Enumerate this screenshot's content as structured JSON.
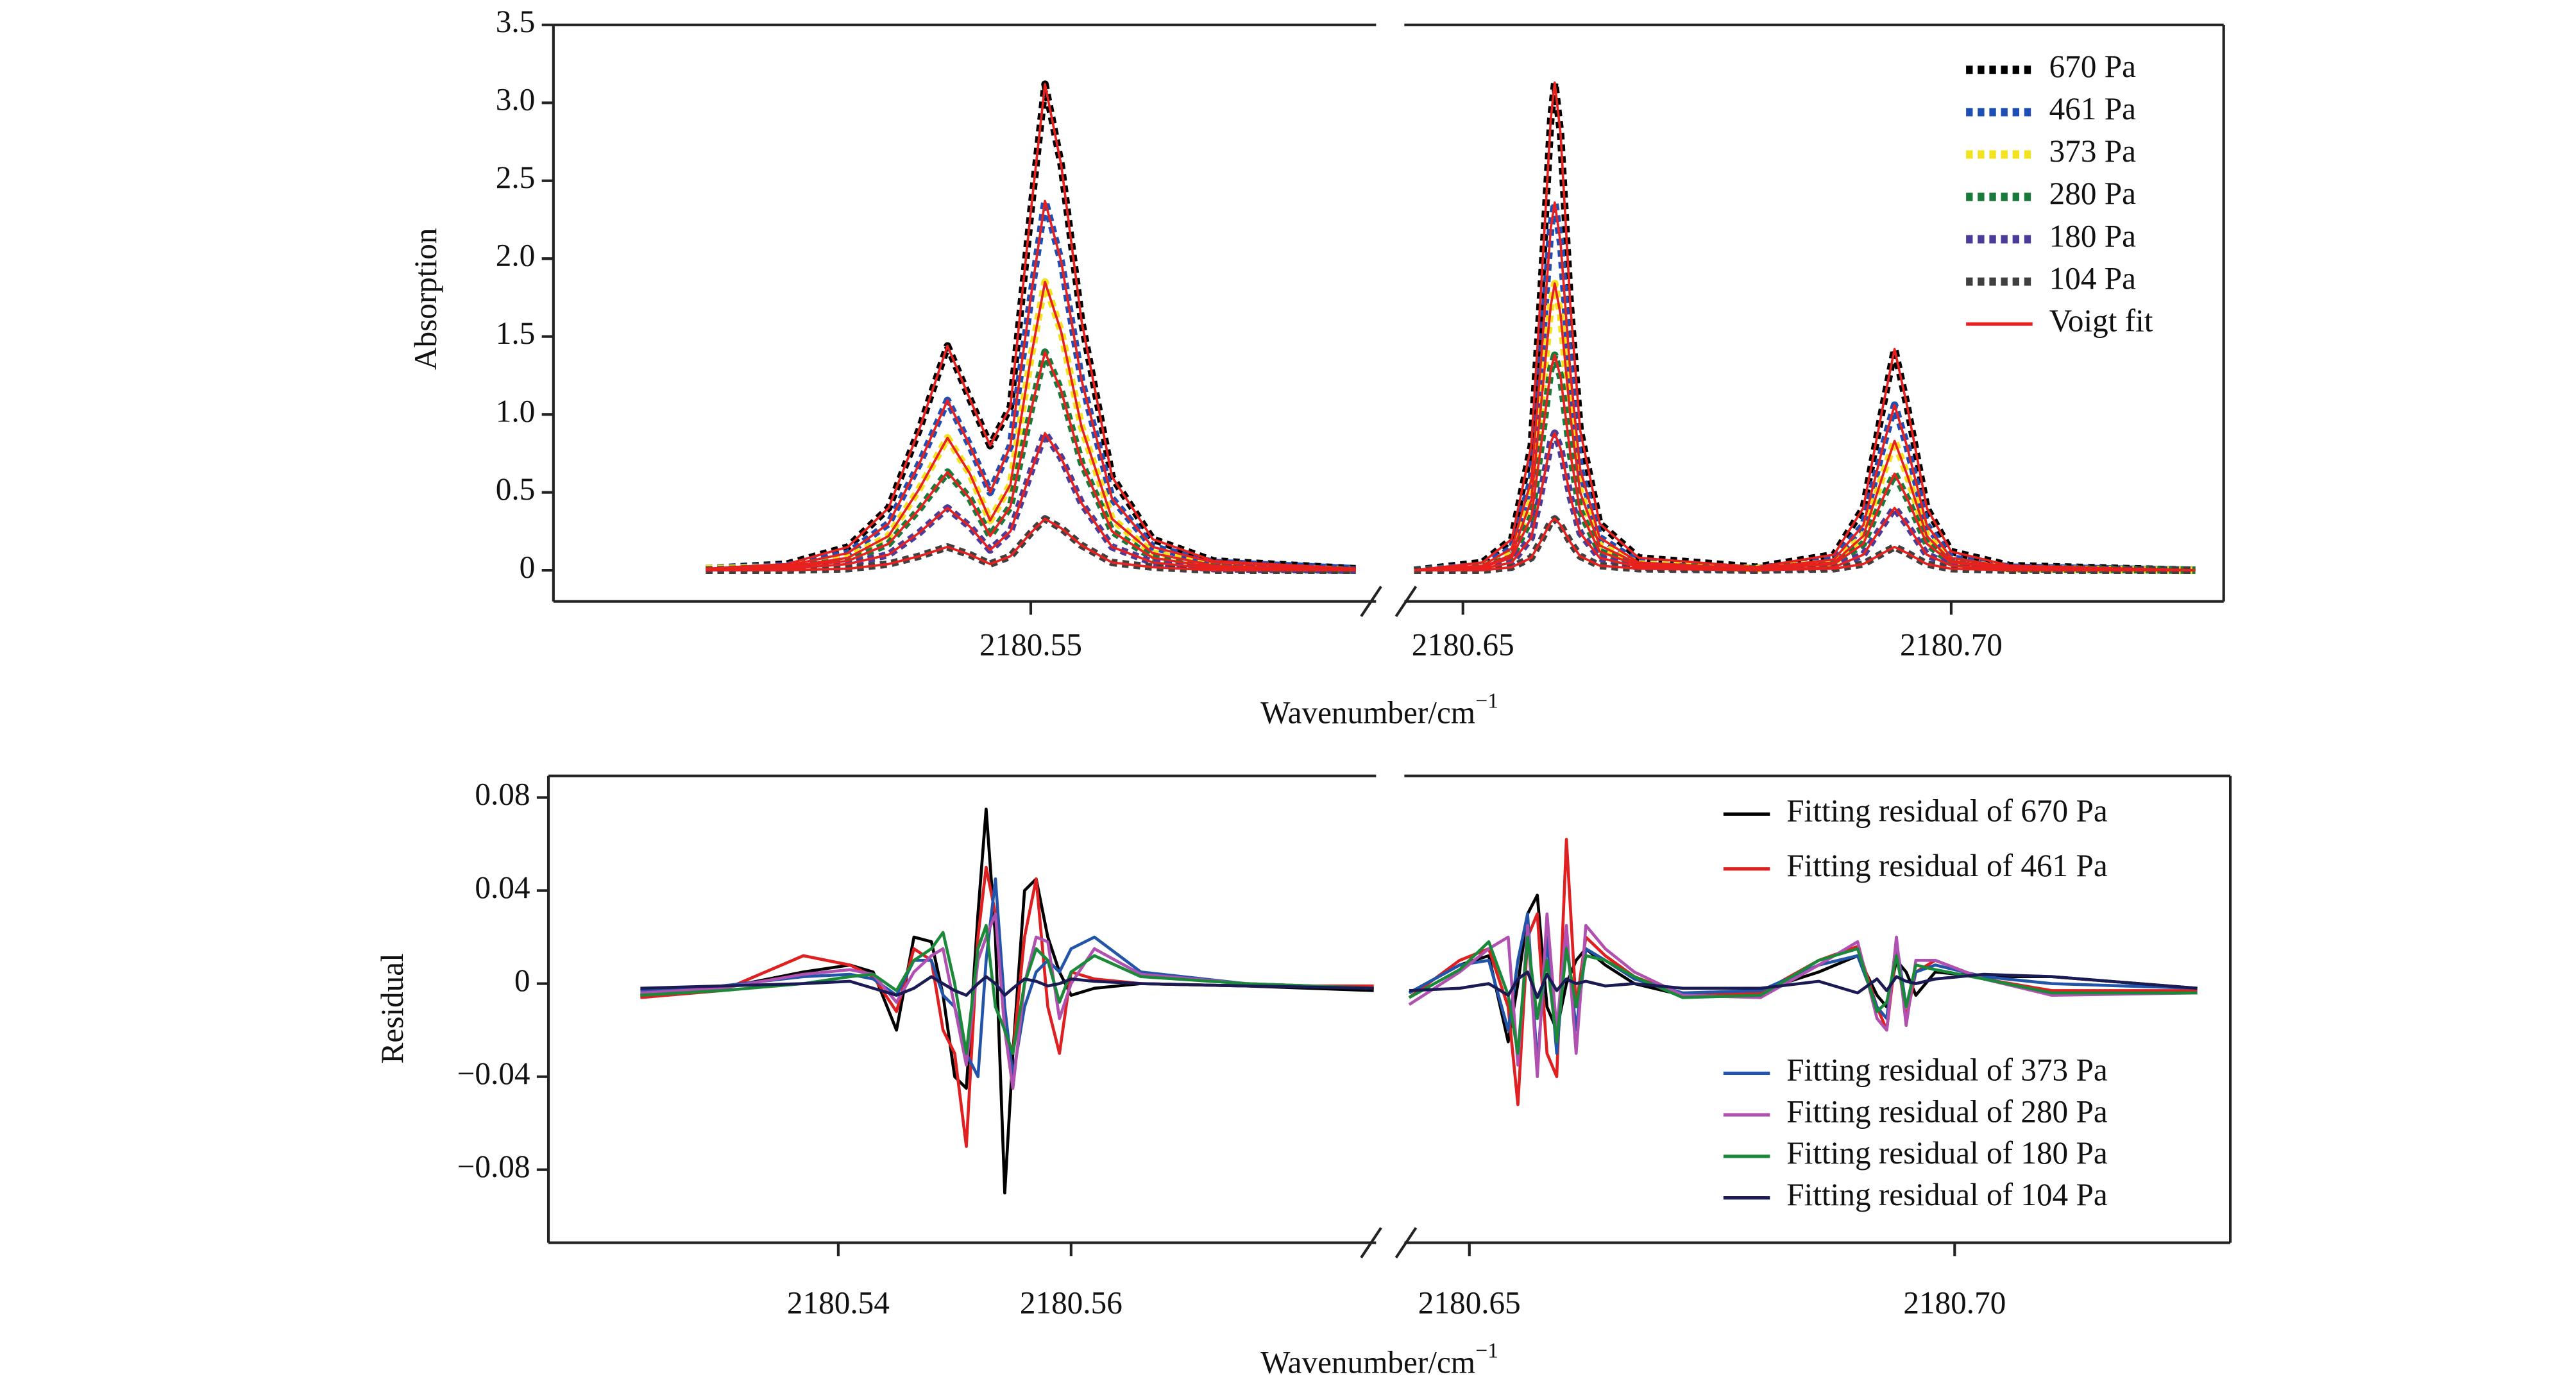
{
  "chart_data": [
    {
      "type": "line",
      "ylabel": "Absorption",
      "xlabel": {
        "text": "Wavenumber/cm",
        "superscript": "−1"
      },
      "segments": [
        {
          "xlim": [
            2180.5265,
            2180.567
          ],
          "xticks": [
            2180.55
          ]
        },
        {
          "xlim": [
            2180.644,
            2180.7279
          ],
          "xticks": [
            2180.65,
            {
              "value": 2180.7,
              "label": "2180.70"
            }
          ]
        }
      ],
      "ylim": [
        -0.2,
        3.5
      ],
      "yticks": [
        0,
        0.5,
        {
          "value": 1,
          "label": "1.0"
        },
        1.5,
        {
          "value": 2,
          "label": "2.0"
        },
        2.5,
        {
          "value": 3,
          "label": "3.0"
        },
        3.5
      ],
      "legend": "upper right",
      "x": [
        2180.534,
        2180.538,
        2180.541,
        2180.543,
        2180.5445,
        2180.5459,
        2180.547,
        2180.548,
        2180.549,
        2180.55,
        2180.5507,
        2180.5515,
        2180.5525,
        2180.554,
        2180.556,
        2180.559,
        2180.566,
        2180.645,
        2180.652,
        2180.655,
        2180.657,
        2180.658,
        2180.659,
        2180.6594,
        2180.66,
        2180.661,
        2180.662,
        2180.664,
        2180.668,
        2180.68,
        2180.688,
        2180.691,
        2180.693,
        2180.6942,
        2180.6955,
        2180.6975,
        2180.7,
        2180.706,
        2180.725
      ],
      "series": [
        {
          "name": "670 Pa",
          "color": "#000000",
          "style": "dotted",
          "values": [
            0.01,
            0.04,
            0.15,
            0.4,
            0.9,
            1.44,
            1.1,
            0.8,
            1.05,
            2.3,
            3.12,
            2.6,
            1.6,
            0.6,
            0.2,
            0.06,
            0.01,
            0,
            0.05,
            0.2,
            0.8,
            1.8,
            2.9,
            3.13,
            2.8,
            1.7,
            0.9,
            0.3,
            0.08,
            0.02,
            0.1,
            0.4,
            1.05,
            1.42,
            1.05,
            0.4,
            0.12,
            0.03,
            0
          ]
        },
        {
          "name": "461 Pa",
          "color": "#1f4fb4",
          "style": "dotted",
          "values": [
            0.01,
            0.03,
            0.11,
            0.3,
            0.68,
            1.09,
            0.8,
            0.5,
            0.8,
            1.75,
            2.37,
            1.98,
            1.22,
            0.46,
            0.15,
            0.05,
            0.01,
            0,
            0.03,
            0.14,
            0.58,
            1.35,
            2.2,
            2.36,
            2.1,
            1.27,
            0.65,
            0.21,
            0.05,
            0.01,
            0.07,
            0.29,
            0.79,
            1.06,
            0.79,
            0.29,
            0.08,
            0.02,
            0
          ]
        },
        {
          "name": "373 Pa",
          "color": "#f2e31e",
          "style": "dotted",
          "values": [
            0.01,
            0.02,
            0.08,
            0.22,
            0.52,
            0.85,
            0.62,
            0.32,
            0.55,
            1.36,
            1.85,
            1.53,
            0.92,
            0.33,
            0.11,
            0.03,
            0,
            0,
            0.02,
            0.1,
            0.45,
            1.06,
            1.7,
            1.84,
            1.64,
            0.99,
            0.5,
            0.16,
            0.04,
            0.01,
            0.05,
            0.22,
            0.61,
            0.83,
            0.61,
            0.22,
            0.06,
            0.01,
            0
          ]
        },
        {
          "name": "280 Pa",
          "color": "#1a7a3a",
          "style": "dotted",
          "values": [
            0,
            0.02,
            0.06,
            0.17,
            0.39,
            0.63,
            0.46,
            0.22,
            0.41,
            1.02,
            1.4,
            1.15,
            0.69,
            0.25,
            0.08,
            0.02,
            0,
            0,
            0.02,
            0.08,
            0.34,
            0.8,
            1.29,
            1.38,
            1.24,
            0.75,
            0.38,
            0.12,
            0.03,
            0.01,
            0.04,
            0.17,
            0.46,
            0.62,
            0.46,
            0.17,
            0.05,
            0.01,
            0
          ]
        },
        {
          "name": "180 Pa",
          "color": "#4a3d9a",
          "style": "dotted",
          "values": [
            0,
            0.01,
            0.04,
            0.1,
            0.24,
            0.4,
            0.28,
            0.13,
            0.25,
            0.63,
            0.88,
            0.72,
            0.43,
            0.15,
            0.05,
            0.01,
            0,
            0,
            0.01,
            0.05,
            0.21,
            0.5,
            0.82,
            0.88,
            0.78,
            0.47,
            0.24,
            0.08,
            0.02,
            0,
            0.02,
            0.1,
            0.29,
            0.4,
            0.29,
            0.1,
            0.03,
            0,
            0
          ]
        },
        {
          "name": "104 Pa",
          "color": "#404040",
          "style": "dotted",
          "values": [
            0,
            0,
            0.01,
            0.04,
            0.09,
            0.15,
            0.1,
            0.04,
            0.09,
            0.24,
            0.33,
            0.27,
            0.16,
            0.05,
            0.02,
            0,
            0,
            0,
            0,
            0.02,
            0.08,
            0.19,
            0.31,
            0.33,
            0.29,
            0.18,
            0.09,
            0.03,
            0.01,
            0,
            0.01,
            0.04,
            0.11,
            0.15,
            0.11,
            0.04,
            0.01,
            0,
            0
          ]
        }
      ],
      "fit": {
        "name": "Voigt fit",
        "color": "#e8201e"
      }
    },
    {
      "type": "line",
      "ylabel": "Residual",
      "xlabel": {
        "text": "Wavenumber/cm",
        "superscript": "−1"
      },
      "segments": [
        {
          "xlim": [
            2180.5151,
            2180.5862
          ],
          "xticks": [
            2180.54,
            2180.56
          ]
        },
        {
          "xlim": [
            2180.6433,
            2180.7284
          ],
          "xticks": [
            2180.65,
            {
              "value": 2180.7,
              "label": "2180.70"
            }
          ]
        }
      ],
      "ylim": [
        -0.1114,
        0.0893
      ],
      "yticks": [
        0.08,
        0.04,
        0,
        {
          "value": -0.04,
          "label": "−0.04"
        },
        {
          "value": -0.08,
          "label": "−0.08"
        }
      ],
      "x": [
        2180.523,
        2180.53,
        2180.537,
        2180.541,
        2180.543,
        2180.545,
        2180.5465,
        2180.548,
        2180.549,
        2180.55,
        2180.551,
        2180.552,
        2180.5527,
        2180.5535,
        2180.5543,
        2180.555,
        2180.556,
        2180.557,
        2180.558,
        2180.559,
        2180.56,
        2180.562,
        2180.566,
        2180.575,
        2180.586,
        2180.6438,
        2180.649,
        2180.652,
        2180.654,
        2180.655,
        2180.656,
        2180.657,
        2180.658,
        2180.659,
        2180.66,
        2180.661,
        2180.662,
        2180.664,
        2180.667,
        2180.672,
        2180.68,
        2180.686,
        2180.69,
        2180.692,
        2180.693,
        2180.694,
        2180.695,
        2180.696,
        2180.698,
        2180.703,
        2180.71,
        2180.725
      ],
      "series": [
        {
          "name": "Fitting residual of 670 Pa",
          "color": "#000000",
          "legend": "upper right",
          "values": [
            -0.005,
            -0.002,
            0.005,
            0.008,
            0.005,
            -0.02,
            0.02,
            0.018,
            -0.005,
            -0.04,
            -0.045,
            0.03,
            0.075,
            0.02,
            -0.09,
            -0.03,
            0.04,
            0.045,
            0.02,
            0.005,
            -0.005,
            -0.002,
            0,
            -0.001,
            -0.003,
            -0.004,
            0.008,
            0.012,
            -0.025,
            0,
            0.03,
            0.038,
            -0.01,
            -0.02,
            0,
            0.01,
            0.015,
            0.008,
            0,
            -0.005,
            -0.003,
            0.005,
            0.012,
            -0.005,
            -0.01,
            0.01,
            0.005,
            -0.005,
            0.005,
            0.003,
            0.003,
            -0.002
          ]
        },
        {
          "name": "Fitting residual of 461 Pa",
          "color": "#e02020",
          "legend": "upper right",
          "values": [
            -0.006,
            -0.003,
            0.012,
            0.008,
            0.003,
            -0.012,
            0.015,
            0.01,
            -0.02,
            -0.03,
            -0.07,
            0.02,
            0.05,
            0.03,
            -0.02,
            -0.03,
            0.02,
            0.045,
            -0.01,
            -0.03,
            0.005,
            0.002,
            0,
            -0.001,
            -0.001,
            -0.006,
            0.01,
            0.015,
            -0.01,
            -0.052,
            0.02,
            0.03,
            -0.03,
            -0.04,
            0.062,
            -0.01,
            0.02,
            0.012,
            0.003,
            -0.005,
            -0.004,
            0.01,
            0.016,
            -0.01,
            -0.02,
            0.015,
            -0.015,
            0.005,
            0.01,
            0.002,
            -0.003,
            -0.003
          ]
        },
        {
          "name": "Fitting residual of 373 Pa",
          "color": "#2255aa",
          "legend": "lower right",
          "values": [
            -0.003,
            -0.001,
            0.003,
            0.004,
            0.002,
            -0.005,
            0.01,
            0.01,
            -0.005,
            -0.01,
            -0.03,
            -0.04,
            0.01,
            0.045,
            -0.01,
            -0.04,
            -0.01,
            0.005,
            0.01,
            0.005,
            0.015,
            0.02,
            0.005,
            0,
            -0.002,
            -0.004,
            0.008,
            0.01,
            -0.02,
            0.01,
            0.03,
            -0.035,
            0.02,
            -0.03,
            0.02,
            -0.02,
            0.015,
            0.01,
            0.002,
            -0.004,
            -0.003,
            0.008,
            0.012,
            -0.01,
            -0.015,
            0.018,
            -0.01,
            0.005,
            0.008,
            0.003,
            0,
            -0.002
          ]
        },
        {
          "name": "Fitting residual of 280 Pa",
          "color": "#b050b0",
          "legend": "lower right",
          "values": [
            -0.004,
            -0.002,
            0.004,
            0.006,
            0.004,
            -0.008,
            0.005,
            0.012,
            0.015,
            -0.01,
            -0.035,
            0.01,
            0.02,
            0.03,
            -0.02,
            -0.045,
            0,
            0.02,
            0.018,
            -0.015,
            0,
            0.015,
            0.004,
            0,
            -0.002,
            -0.009,
            0.005,
            0.015,
            0.02,
            -0.035,
            0.025,
            -0.04,
            0.03,
            -0.02,
            0.025,
            -0.03,
            0.025,
            0.015,
            0.005,
            -0.005,
            -0.006,
            0.008,
            0.018,
            -0.015,
            -0.02,
            0.02,
            -0.018,
            0.01,
            0.01,
            0.002,
            -0.005,
            -0.004
          ]
        },
        {
          "name": "Fitting residual of 180 Pa",
          "color": "#1a8a3a",
          "legend": "lower right",
          "values": [
            -0.005,
            -0.003,
            0,
            0.003,
            0.004,
            -0.003,
            0.01,
            0.015,
            0.022,
            0,
            -0.03,
            0.015,
            0.025,
            -0.01,
            -0.02,
            -0.03,
            0,
            0.015,
            0.01,
            -0.008,
            0.005,
            0.012,
            0.003,
            0,
            -0.002,
            -0.006,
            0.006,
            0.018,
            -0.005,
            -0.03,
            0.02,
            -0.015,
            0.01,
            -0.025,
            0.015,
            -0.01,
            0.012,
            0.01,
            0.003,
            -0.006,
            -0.005,
            0.01,
            0.015,
            -0.012,
            -0.008,
            0.012,
            -0.01,
            0.008,
            0.006,
            0.002,
            -0.004,
            -0.004
          ]
        },
        {
          "name": "Fitting residual of 104 Pa",
          "color": "#1a1a55",
          "legend": "lower right",
          "values": [
            -0.002,
            -0.001,
            0,
            0.001,
            -0.002,
            -0.005,
            -0.002,
            0.003,
            0,
            -0.003,
            -0.005,
            0,
            0.003,
            0,
            -0.005,
            -0.002,
            0.002,
            0.001,
            -0.001,
            0,
            0.002,
            0.001,
            0,
            -0.001,
            -0.002,
            -0.003,
            -0.002,
            0,
            -0.005,
            0.002,
            0.005,
            -0.006,
            0.004,
            -0.003,
            0.002,
            0,
            0.001,
            -0.001,
            0,
            -0.002,
            -0.002,
            0.001,
            -0.004,
            0.002,
            -0.003,
            0.003,
            0.001,
            0,
            0.002,
            0.004,
            0.003,
            -0.002
          ]
        }
      ]
    }
  ]
}
